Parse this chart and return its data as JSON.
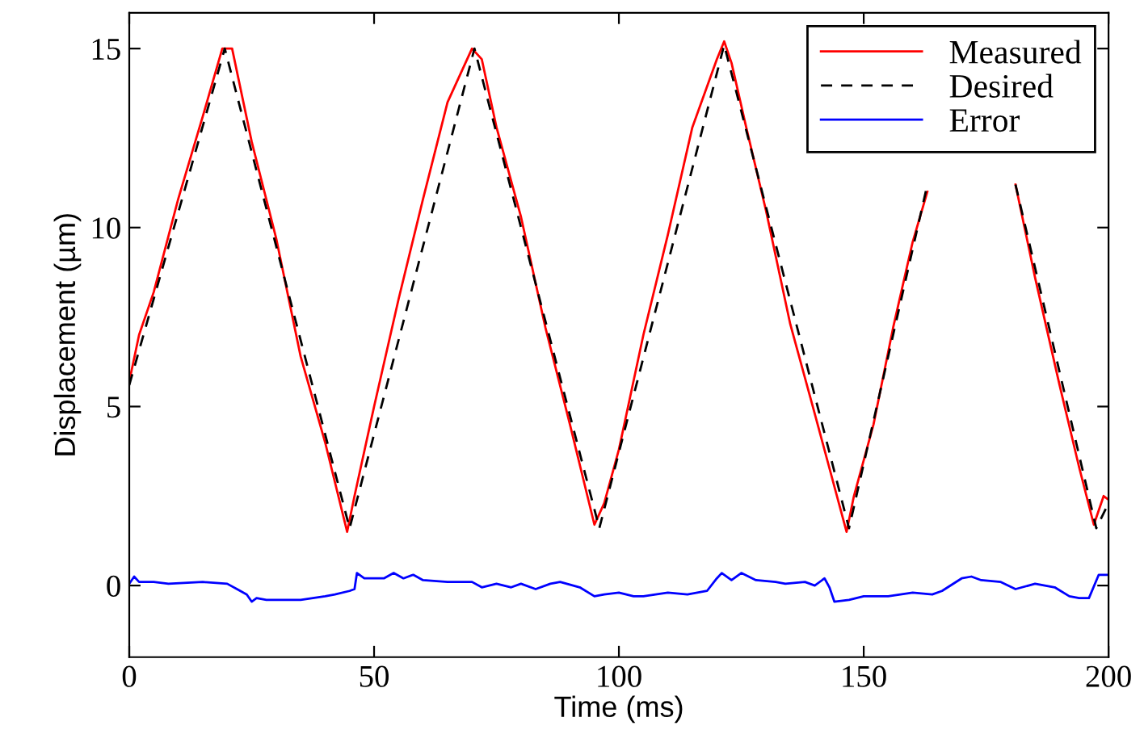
{
  "chart_data": {
    "type": "line",
    "xlabel": "Time (ms)",
    "ylabel": "Displacement (µm)",
    "xlim": [
      0,
      200
    ],
    "ylim": [
      -2,
      16
    ],
    "xticks": [
      0,
      50,
      100,
      150,
      200
    ],
    "yticks": [
      0,
      5,
      10,
      15
    ],
    "grid": false,
    "legend": "top right",
    "marker": "none",
    "series": [
      {
        "name": "Measured",
        "color": "#ff0000",
        "line_style": "solid",
        "x": [
          0,
          2,
          5,
          10,
          15,
          19,
          21,
          25,
          30,
          35,
          40,
          44.5,
          46,
          50,
          55,
          60,
          65,
          70,
          72,
          75,
          80,
          85,
          90,
          95,
          97,
          100,
          105,
          110,
          115,
          120,
          121.5,
          123,
          126,
          130,
          135,
          140,
          146.5,
          148,
          152,
          156,
          160,
          163,
          164,
          181,
          185,
          190,
          194,
          197,
          199,
          200
        ],
        "values": [
          5.7,
          7,
          8.2,
          10.8,
          13.1,
          15,
          15,
          12.4,
          9.7,
          6.4,
          4,
          1.5,
          2.5,
          5,
          8,
          10.8,
          13.5,
          15,
          14.7,
          12.8,
          10.3,
          7.2,
          4.5,
          1.7,
          2.3,
          3.8,
          7,
          9.8,
          12.8,
          14.7,
          15.2,
          14.6,
          12.8,
          10.5,
          7.3,
          4.8,
          1.5,
          2.5,
          4.5,
          7.2,
          9.6,
          11,
          null,
          11.2,
          8.6,
          5.6,
          3.3,
          1.7,
          2.5,
          2.4
        ]
      },
      {
        "name": "Desired",
        "color": "#000000",
        "line_style": "dashed",
        "x": [
          0,
          19.5,
          45,
          70.5,
          96,
          121.5,
          147,
          163,
          170,
          181,
          197.5,
          200
        ],
        "values": [
          5.6,
          15,
          1.6,
          15,
          1.6,
          15.1,
          1.6,
          11.2,
          null,
          11.2,
          1.6,
          2.3
        ]
      },
      {
        "name": "Error",
        "color": "#0000ff",
        "line_style": "solid",
        "x": [
          0,
          1,
          2,
          5,
          8,
          15,
          20,
          22,
          24,
          25,
          26,
          28,
          35,
          40,
          42,
          45,
          46,
          46.5,
          48,
          52,
          54,
          56,
          58,
          60,
          65,
          70,
          72,
          75,
          78,
          80,
          83,
          86,
          88,
          92,
          95,
          97,
          100,
          103,
          105,
          110,
          114,
          118,
          120,
          121,
          123,
          125,
          128,
          132,
          134,
          138,
          140,
          142,
          143,
          144,
          147,
          150,
          155,
          160,
          164,
          166,
          170,
          172,
          174,
          178,
          181,
          185,
          189,
          192,
          194,
          196,
          198,
          200
        ],
        "values": [
          0.05,
          0.25,
          0.1,
          0.1,
          0.05,
          0.1,
          0.05,
          -0.1,
          -0.25,
          -0.45,
          -0.35,
          -0.4,
          -0.4,
          -0.3,
          -0.25,
          -0.15,
          -0.1,
          0.35,
          0.2,
          0.2,
          0.35,
          0.2,
          0.3,
          0.15,
          0.1,
          0.1,
          -0.05,
          0.05,
          -0.05,
          0.05,
          -0.1,
          0.05,
          0.1,
          -0.05,
          -0.3,
          -0.25,
          -0.2,
          -0.3,
          -0.3,
          -0.2,
          -0.25,
          -0.15,
          0.2,
          0.35,
          0.15,
          0.35,
          0.15,
          0.1,
          0.05,
          0.1,
          0,
          0.2,
          -0.05,
          -0.45,
          -0.4,
          -0.3,
          -0.3,
          -0.2,
          -0.25,
          -0.15,
          0.2,
          0.25,
          0.15,
          0.1,
          -0.1,
          0.05,
          -0.05,
          -0.3,
          -0.35,
          -0.35,
          0.3,
          0.3
        ]
      }
    ]
  }
}
